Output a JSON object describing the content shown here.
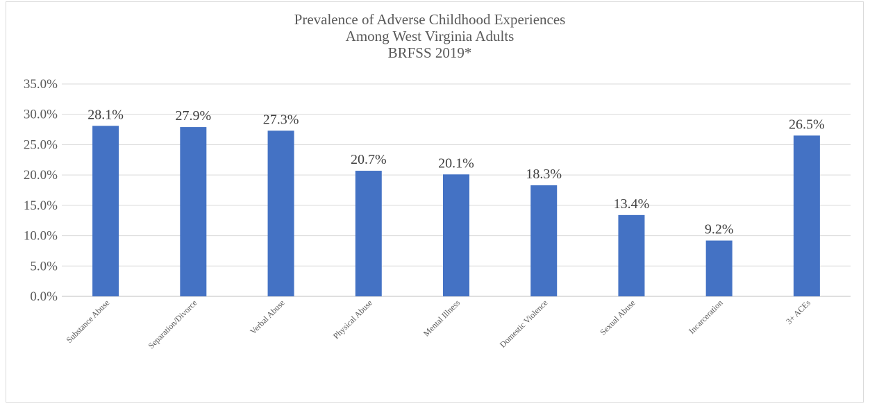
{
  "chart_data": {
    "type": "bar",
    "title_lines": [
      "Prevalence of Adverse Childhood Experiences",
      "Among West Virginia Adults",
      "BRFSS 2019*"
    ],
    "categories": [
      "Substance Abuse",
      "Separation/Divorce",
      "Verbal Abuse",
      "Physical Abuse",
      "Mental Illness",
      "Domestic Violence",
      "Sexual Abuse",
      "Incarceration",
      "3+ ACEs"
    ],
    "values": [
      28.1,
      27.9,
      27.3,
      20.7,
      20.1,
      18.3,
      13.4,
      9.2,
      26.5
    ],
    "value_labels": [
      "28.1%",
      "27.9%",
      "27.3%",
      "20.7%",
      "20.1%",
      "18.3%",
      "13.4%",
      "9.2%",
      "26.5%"
    ],
    "y_ticks": [
      0,
      5,
      10,
      15,
      20,
      25,
      30,
      35
    ],
    "y_tick_labels": [
      "0.0%",
      "5.0%",
      "10.0%",
      "15.0%",
      "20.0%",
      "25.0%",
      "30.0%",
      "35.0%"
    ],
    "ylim": [
      0,
      35
    ],
    "xlabel": "",
    "ylabel": "",
    "grid": true,
    "legend": "none",
    "bar_color": "#4472C4"
  }
}
